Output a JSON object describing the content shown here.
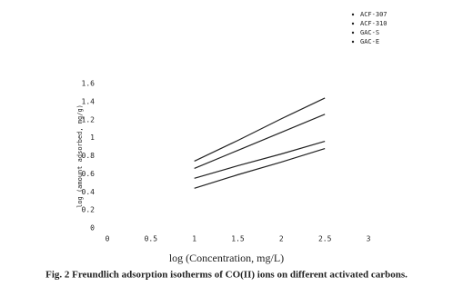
{
  "chart_data": {
    "type": "line",
    "caption": "Fig. 2  Freundlich adsorption isotherms of CO(II) ions on different activated carbons.",
    "x_label": "log (Concentration, mg/L)",
    "y_label": "log (amount adsorbed, mg/g)",
    "x": [
      1,
      1.5,
      2,
      2.5
    ],
    "series": [
      {
        "name": "ACF-307",
        "color": "#222222",
        "values": [
          0.74,
          0.97,
          1.21,
          1.44
        ]
      },
      {
        "name": "ACF-310",
        "color": "#222222",
        "values": [
          0.66,
          0.86,
          1.06,
          1.26
        ]
      },
      {
        "name": "GAC-S",
        "color": "#222222",
        "values": [
          0.55,
          0.69,
          0.82,
          0.96
        ]
      },
      {
        "name": "GAC-E",
        "color": "#222222",
        "values": [
          0.44,
          0.59,
          0.73,
          0.88
        ]
      }
    ],
    "xlim": [
      0,
      3
    ],
    "xticks": [
      0,
      0.5,
      1,
      1.5,
      2,
      2.5,
      3
    ],
    "ylim": [
      0,
      1.6
    ],
    "yticks": [
      0,
      0.2,
      0.4,
      0.6,
      0.8,
      1,
      1.2,
      1.4,
      1.6
    ],
    "grid": false
  }
}
